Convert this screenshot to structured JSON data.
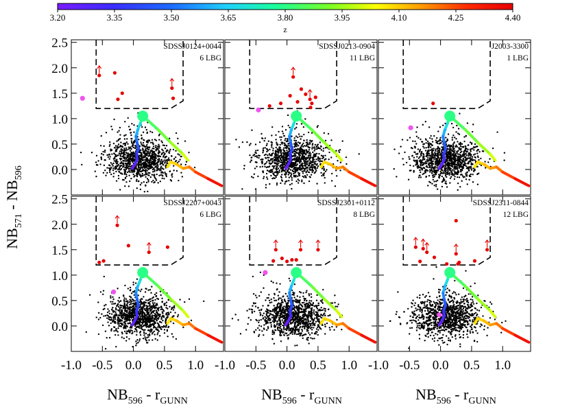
{
  "figure": {
    "colorbar": {
      "label": "z",
      "tick_labels": [
        "3.20",
        "3.35",
        "3.50",
        "3.65",
        "3.80",
        "3.95",
        "4.10",
        "4.25",
        "4.40"
      ],
      "range": [
        3.2,
        4.4
      ]
    },
    "ylabel": {
      "main": "NB",
      "sub1": "571",
      "mid": " - NB",
      "sub2": "596"
    },
    "xlabel": {
      "main": "NB",
      "sub1": "596",
      "mid": " - r",
      "sub2": "GUNN"
    },
    "x_tick_labels": [
      "-1.0",
      "-0.5",
      "0.0",
      "0.5",
      "1.0"
    ],
    "y_tick_labels": [
      "2.5",
      "2.0",
      "1.5",
      "1.0",
      "0.5",
      "0.0"
    ]
  },
  "chart_data": [
    {
      "type": "scatter",
      "title": "SDSSJ0124+0044",
      "count_label": "6 LBG",
      "xlim": [
        -1.0,
        1.45
      ],
      "ylim": [
        -0.5,
        2.55
      ],
      "lbg_points": [
        {
          "x": -0.55,
          "y": 1.85,
          "limit": true
        },
        {
          "x": -0.3,
          "y": 1.9,
          "limit": false
        },
        {
          "x": -0.25,
          "y": 1.38,
          "limit": false
        },
        {
          "x": -0.18,
          "y": 1.5,
          "limit": false
        },
        {
          "x": 0.62,
          "y": 1.6,
          "limit": true
        },
        {
          "x": 0.64,
          "y": 1.4,
          "limit": false
        }
      ],
      "magenta_points": [
        {
          "x": -0.82,
          "y": 1.4
        }
      ]
    },
    {
      "type": "scatter",
      "title": "SDSSJ0213-0904",
      "count_label": "11 LBG",
      "xlim": [
        -1.0,
        1.45
      ],
      "ylim": [
        -0.5,
        2.55
      ],
      "lbg_points": [
        {
          "x": -0.28,
          "y": 1.25,
          "limit": false
        },
        {
          "x": -0.1,
          "y": 1.3,
          "limit": false
        },
        {
          "x": 0.05,
          "y": 1.45,
          "limit": false
        },
        {
          "x": 0.1,
          "y": 1.82,
          "limit": true
        },
        {
          "x": 0.17,
          "y": 1.33,
          "limit": false
        },
        {
          "x": 0.23,
          "y": 1.58,
          "limit": false
        },
        {
          "x": 0.3,
          "y": 1.48,
          "limit": false
        },
        {
          "x": 0.37,
          "y": 1.38,
          "limit": true
        },
        {
          "x": 0.4,
          "y": 1.3,
          "limit": false
        },
        {
          "x": 0.46,
          "y": 1.42,
          "limit": false
        },
        {
          "x": 0.38,
          "y": 1.22,
          "limit": false
        }
      ],
      "magenta_points": [
        {
          "x": -0.46,
          "y": 1.17
        }
      ]
    },
    {
      "type": "scatter",
      "title": "J2003-3300",
      "count_label": "1 LBG",
      "xlim": [
        -1.0,
        1.45
      ],
      "ylim": [
        -0.5,
        2.55
      ],
      "lbg_points": [
        {
          "x": -0.12,
          "y": 1.3,
          "limit": false
        }
      ],
      "magenta_points": [
        {
          "x": -0.48,
          "y": 0.82
        }
      ]
    },
    {
      "type": "scatter",
      "title": "SDSSJ2207+0043",
      "count_label": "6 LBG",
      "xlim": [
        -1.0,
        1.45
      ],
      "ylim": [
        -0.5,
        2.55
      ],
      "lbg_points": [
        {
          "x": -0.26,
          "y": 1.98,
          "limit": true
        },
        {
          "x": -0.48,
          "y": 1.28,
          "limit": false
        },
        {
          "x": -0.08,
          "y": 1.58,
          "limit": false
        },
        {
          "x": 0.25,
          "y": 1.45,
          "limit": true
        },
        {
          "x": 0.55,
          "y": 1.55,
          "limit": false
        },
        {
          "x": -0.55,
          "y": 1.25,
          "limit": false
        }
      ],
      "magenta_points": [
        {
          "x": -0.32,
          "y": 0.67
        }
      ]
    },
    {
      "type": "scatter",
      "title": "SDSSJ2301+0112",
      "count_label": "8 LBG",
      "xlim": [
        -1.0,
        1.45
      ],
      "ylim": [
        -0.5,
        2.55
      ],
      "lbg_points": [
        {
          "x": -0.22,
          "y": 1.28,
          "limit": false
        },
        {
          "x": -0.18,
          "y": 1.5,
          "limit": true
        },
        {
          "x": -0.08,
          "y": 1.33,
          "limit": false
        },
        {
          "x": 0.0,
          "y": 1.27,
          "limit": false
        },
        {
          "x": 0.08,
          "y": 1.3,
          "limit": false
        },
        {
          "x": 0.22,
          "y": 1.5,
          "limit": true
        },
        {
          "x": 0.5,
          "y": 1.5,
          "limit": true
        },
        {
          "x": 0.15,
          "y": 1.3,
          "limit": false
        }
      ],
      "magenta_points": [
        {
          "x": -0.35,
          "y": 1.05
        }
      ]
    },
    {
      "type": "scatter",
      "title": "SDSSJ2311-0844",
      "count_label": "12 LBG",
      "xlim": [
        -1.0,
        1.45
      ],
      "ylim": [
        -0.5,
        2.55
      ],
      "lbg_points": [
        {
          "x": -0.4,
          "y": 1.55,
          "limit": true
        },
        {
          "x": -0.28,
          "y": 1.52,
          "limit": true
        },
        {
          "x": -0.22,
          "y": 1.45,
          "limit": true
        },
        {
          "x": -0.33,
          "y": 1.27,
          "limit": false
        },
        {
          "x": -0.1,
          "y": 1.35,
          "limit": false
        },
        {
          "x": 0.25,
          "y": 2.07,
          "limit": false
        },
        {
          "x": 0.25,
          "y": 1.42,
          "limit": true
        },
        {
          "x": 0.3,
          "y": 1.25,
          "limit": false
        },
        {
          "x": 0.28,
          "y": 1.22,
          "limit": false
        },
        {
          "x": 0.55,
          "y": 1.28,
          "limit": false
        },
        {
          "x": 0.75,
          "y": 1.5,
          "limit": true
        },
        {
          "x": 0.1,
          "y": 1.22,
          "limit": false
        }
      ],
      "magenta_points": [
        {
          "x": -0.02,
          "y": 0.22
        }
      ]
    }
  ],
  "selection_box": {
    "x_left": -0.6,
    "x_right": 0.8,
    "y_bottom": 1.2,
    "x_knee": 0.6,
    "y_knee": 1.35
  },
  "track": {
    "points": [
      {
        "x": 0.15,
        "y": 1.05,
        "z": 3.8
      },
      {
        "x": 0.11,
        "y": 0.9,
        "z": 3.72
      },
      {
        "x": 0.07,
        "y": 0.78,
        "z": 3.64
      },
      {
        "x": 0.04,
        "y": 0.65,
        "z": 3.57
      },
      {
        "x": 0.06,
        "y": 0.52,
        "z": 3.5
      },
      {
        "x": 0.08,
        "y": 0.4,
        "z": 3.44
      },
      {
        "x": 0.05,
        "y": 0.3,
        "z": 3.38
      },
      {
        "x": 0.06,
        "y": 0.2,
        "z": 3.33
      },
      {
        "x": 0.03,
        "y": 0.12,
        "z": 3.28
      },
      {
        "x": 0.0,
        "y": 0.06,
        "z": 3.25
      },
      {
        "x": -0.02,
        "y": 0.02,
        "z": 3.22
      },
      {
        "x": 0.2,
        "y": 1.0,
        "z": 3.82
      },
      {
        "x": 0.4,
        "y": 0.78,
        "z": 3.87
      },
      {
        "x": 0.6,
        "y": 0.53,
        "z": 3.92
      },
      {
        "x": 0.8,
        "y": 0.3,
        "z": 3.98
      },
      {
        "x": 0.88,
        "y": 0.18,
        "z": 4.02
      },
      {
        "x": 0.55,
        "y": 0.05,
        "z": 4.06
      },
      {
        "x": 0.6,
        "y": 0.15,
        "z": 4.08
      },
      {
        "x": 0.7,
        "y": 0.1,
        "z": 4.1
      },
      {
        "x": 0.8,
        "y": 0.02,
        "z": 4.14
      },
      {
        "x": 0.9,
        "y": 0.05,
        "z": 4.18
      },
      {
        "x": 1.0,
        "y": -0.05,
        "z": 4.22
      },
      {
        "x": 1.2,
        "y": -0.18,
        "z": 4.3
      },
      {
        "x": 1.42,
        "y": -0.32,
        "z": 4.4
      }
    ]
  }
}
